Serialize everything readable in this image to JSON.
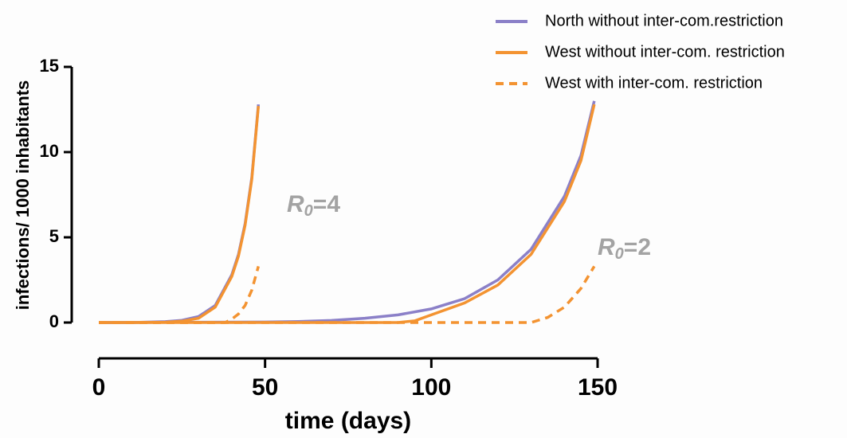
{
  "chart_data": {
    "type": "line",
    "xlabel": "time (days)",
    "ylabel": "infections/ 1000 inhabitants",
    "xlim": [
      0,
      150
    ],
    "ylim": [
      0,
      15
    ],
    "xticks": [
      0,
      50,
      100,
      150
    ],
    "yticks": [
      0,
      5,
      10,
      15
    ],
    "annotations": [
      {
        "base": "R",
        "subscript": "0",
        "rest": "=4"
      },
      {
        "base": "R",
        "subscript": "0",
        "rest": "=2"
      }
    ],
    "series": [
      {
        "name": "North  without inter-com.restriction",
        "color": "#8b80c8",
        "dashed": false,
        "curves": [
          {
            "x": [
              0,
              10,
              20,
              25,
              30,
              35,
              40,
              42,
              44,
              46,
              48
            ],
            "values": [
              0,
              0,
              0.05,
              0.13,
              0.35,
              1.0,
              2.8,
              4.0,
              5.8,
              8.5,
              12.8
            ]
          },
          {
            "x": [
              0,
              50,
              60,
              70,
              80,
              90,
              100,
              110,
              120,
              130,
              140,
              145,
              149
            ],
            "values": [
              0,
              0.03,
              0.06,
              0.12,
              0.25,
              0.45,
              0.8,
              1.4,
              2.5,
              4.3,
              7.4,
              9.8,
              13.0
            ]
          }
        ]
      },
      {
        "name": "West without inter-com. restriction",
        "color": "#f39331",
        "dashed": false,
        "curves": [
          {
            "x": [
              0,
              10,
              20,
              25,
              30,
              35,
              40,
              42,
              44,
              46,
              48
            ],
            "values": [
              0,
              0,
              0.02,
              0.08,
              0.25,
              0.9,
              2.7,
              3.9,
              5.7,
              8.4,
              12.7
            ]
          },
          {
            "x": [
              0,
              90,
              95,
              100,
              110,
              120,
              130,
              140,
              145,
              149
            ],
            "values": [
              0,
              0,
              0.1,
              0.45,
              1.15,
              2.2,
              4.0,
              7.1,
              9.5,
              12.8
            ]
          }
        ]
      },
      {
        "name": "West with inter-com. restriction",
        "color": "#f39331",
        "dashed": true,
        "curves": [
          {
            "x": [
              0,
              38,
              40,
              42,
              44,
              46,
              48
            ],
            "values": [
              0,
              0,
              0.2,
              0.5,
              1.0,
              1.9,
              3.3
            ]
          },
          {
            "x": [
              0,
              130,
              135,
              140,
              145,
              149
            ],
            "values": [
              0,
              0,
              0.3,
              0.9,
              2.0,
              3.3
            ]
          }
        ]
      }
    ]
  }
}
